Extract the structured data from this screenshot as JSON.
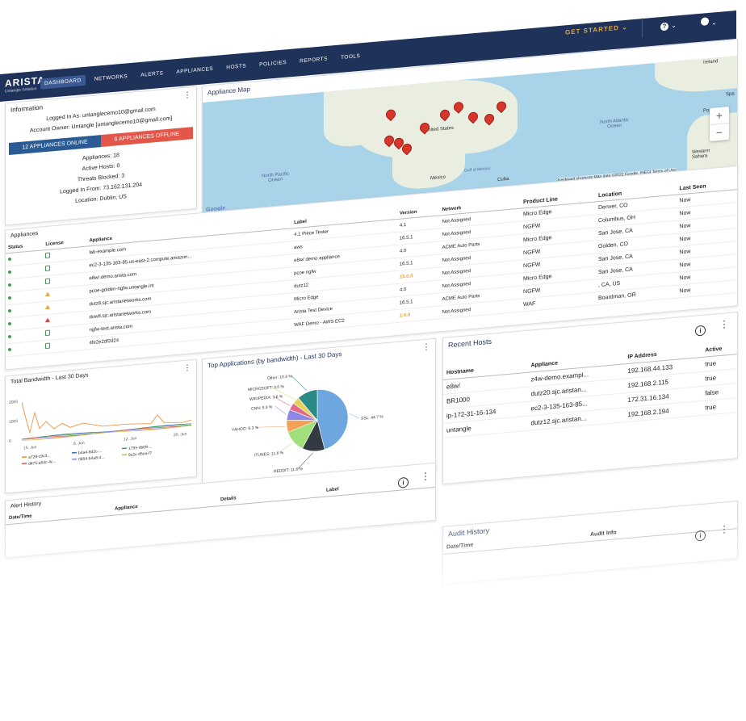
{
  "header": {
    "brand": "ARISTA",
    "brand_sub": "Untangle Solution",
    "nav": [
      "DASHBOARD",
      "NETWORKS",
      "ALERTS",
      "APPLIANCES",
      "HOSTS",
      "POLICIES",
      "REPORTS",
      "TOOLS"
    ],
    "active_nav": "DASHBOARD",
    "get_started": "GET STARTED",
    "help_icon": "help-circle-icon",
    "account_icon": "account-circle-icon"
  },
  "info_card": {
    "title": "Information",
    "logged_in_as": "Logged In As: untanglecemo10@gmail.com",
    "account_owner": "Account Owner: Untangle [untanglecemo10@gmail.com]",
    "online": "12 APPLIANCES ONLINE",
    "offline": "6 APPLIANCES OFFLINE",
    "appliances": "Appliances: 18",
    "active_hosts": "Active Hosts: 0",
    "threats": "Threats Blocked: 3",
    "logged_from": "Logged In From: 73.162.131.204",
    "location": "Location: Dublin, US"
  },
  "map_card": {
    "title": "Appliance Map",
    "labels": {
      "us": "United States",
      "mexico": "Mexico",
      "cuba": "Cuba",
      "ireland": "Ireland",
      "portugal": "Portugal",
      "spain": "Spa",
      "npo": "North Pacific Ocean",
      "nao": "North Atlantic Ocean",
      "gulf": "Gulf of Mexico",
      "western_sahara": "Western Sahara",
      "google": "Google",
      "footer": "Keyboard shortcuts   Map data ©2022 Google, INEGI   Terms of Use"
    },
    "zoom_in": "+",
    "zoom_out": "−"
  },
  "appliances_card": {
    "title": "Appliances",
    "columns": [
      "Status",
      "License",
      "Appliance",
      "Label",
      "Version",
      "Network",
      "Product Line",
      "Location",
      "Last Seen"
    ],
    "rows": [
      {
        "status": "ok",
        "license": "ok",
        "appliance": "lab-example.com",
        "label": "4.1 Piece Tester",
        "version": "4.1",
        "version_flag": false,
        "network": "Not Assigned",
        "product": "Micro Edge",
        "location": "Denver, CO",
        "last_seen": "Now"
      },
      {
        "status": "ok",
        "license": "ok",
        "appliance": "ec2-3-135-163-85.us-east-2.compute.amazon...",
        "label": "aws",
        "version": "16.5.1",
        "version_flag": false,
        "network": "Not Assigned",
        "product": "NGFW",
        "location": "Columbus, OH",
        "last_seen": "Now"
      },
      {
        "status": "ok",
        "license": "ok",
        "appliance": "e8w/.demo.arista.com",
        "label": "e8w/ demo appliance",
        "version": "4.0",
        "version_flag": false,
        "network": "ACME Auto Parts",
        "product": "Micro Edge",
        "location": "San Jose, CA",
        "last_seen": "Now"
      },
      {
        "status": "ok",
        "license": "warn",
        "appliance": "pcoe-golden-ngfw.untangle.int",
        "label": "pcoe ngfw",
        "version": "16.5.1",
        "version_flag": false,
        "network": "Not Assigned",
        "product": "NGFW",
        "location": "Golden, CO",
        "last_seen": "Now"
      },
      {
        "status": "ok",
        "license": "warn",
        "appliance": "dutz8.sjc.aristanetworks.com",
        "label": "dutz12",
        "version": "15.0.0",
        "version_flag": true,
        "network": "Not Assigned",
        "product": "NGFW",
        "location": "San Jose, CA",
        "last_seen": "Now"
      },
      {
        "status": "ok",
        "license": "error",
        "appliance": "duw8.sjc.aristanetworks.com",
        "label": "Micro Edge",
        "version": "4.0",
        "version_flag": false,
        "network": "Not Assigned",
        "product": "Micro Edge",
        "location": "San Jose, CA",
        "last_seen": "Now"
      },
      {
        "status": "ok",
        "license": "ok",
        "appliance": "ngfw-test.arista.com",
        "label": "Arista Test Device",
        "version": "16.5.1",
        "version_flag": false,
        "network": "ACME Auto Parts",
        "product": "NGFW",
        "location": ", CA, US",
        "last_seen": "Now"
      },
      {
        "status": "ok",
        "license": "ok",
        "appliance": "4fe2e2df2d24",
        "label": "WAF Demo - AWS EC2",
        "version": "1.0.0",
        "version_flag": true,
        "network": "Not Assigned",
        "product": "WAF",
        "location": "Boardman, OR",
        "last_seen": "Now"
      }
    ]
  },
  "bandwidth_card": {
    "title": "Total Bandwidth - Last 30 Days",
    "y_ticks": [
      "2000",
      "1000",
      "0"
    ],
    "x_ticks": [
      "15. Jun",
      "6. Jun",
      "12. Jun",
      "20. Jun"
    ],
    "legend": [
      "a728-c9c3...",
      "b4a4-8d2c-...",
      "1755-4b08-...",
      "d475-a54c-4c...",
      "0854-b4a8-4...",
      "9c2c-d5ea-f7"
    ]
  },
  "top_apps_card": {
    "title": "Top Applications (by bandwidth) - Last 30 Days",
    "chart_data": {
      "type": "pie",
      "title": "Top Applications (by bandwidth) - Last 30 Days",
      "labels": [
        "SSL",
        "REDDIT",
        "ITUNES",
        "YAHOO",
        "CNN",
        "WIKIPEDIA",
        "MICROSOFT",
        "Other"
      ],
      "display_labels": [
        "SSL: 44.7 %",
        "REDDIT: 11.6 %",
        "ITUNES: 11.6 %",
        "YAHOO: 6.3 %",
        "CNN: 5.3 %",
        "WIKIPEDIA: 3.6 %",
        "MICROSOFT: 3.5 %",
        "Other: 10.3 %"
      ],
      "values": [
        44.7,
        11.6,
        11.6,
        6.3,
        5.3,
        3.6,
        3.5,
        10.3
      ],
      "colors": [
        "#6ea6e0",
        "#333a44",
        "#a0df7a",
        "#f0a258",
        "#8e87e6",
        "#e26b88",
        "#e7d25c",
        "#2c8a86"
      ]
    }
  },
  "hosts_card": {
    "title": "Recent Hosts",
    "columns": [
      "Hostname",
      "Appliance",
      "IP Address",
      "Active"
    ],
    "rows": [
      {
        "host": "e8w/",
        "appliance": "z4w-demo.exampl...",
        "ip": "192.168.44.133",
        "active": "true"
      },
      {
        "host": "BR1000",
        "appliance": "dutz20.sjc.aristan...",
        "ip": "192.168.2.115",
        "active": "true"
      },
      {
        "host": "ip-172-31-16-134",
        "appliance": "ec2-3-135-163-85...",
        "ip": "172.31.16.134",
        "active": "false"
      },
      {
        "host": "untangle",
        "appliance": "dutz12.sjc.aristan...",
        "ip": "192.168.2.194",
        "active": "true"
      }
    ]
  },
  "alerts_card": {
    "title": "Alert History",
    "columns": [
      "Date/Time",
      "Appliance",
      "Details",
      "Label"
    ]
  },
  "audit_card": {
    "title": "Audit History",
    "columns": [
      "Date/Time",
      "Audit Info"
    ]
  }
}
